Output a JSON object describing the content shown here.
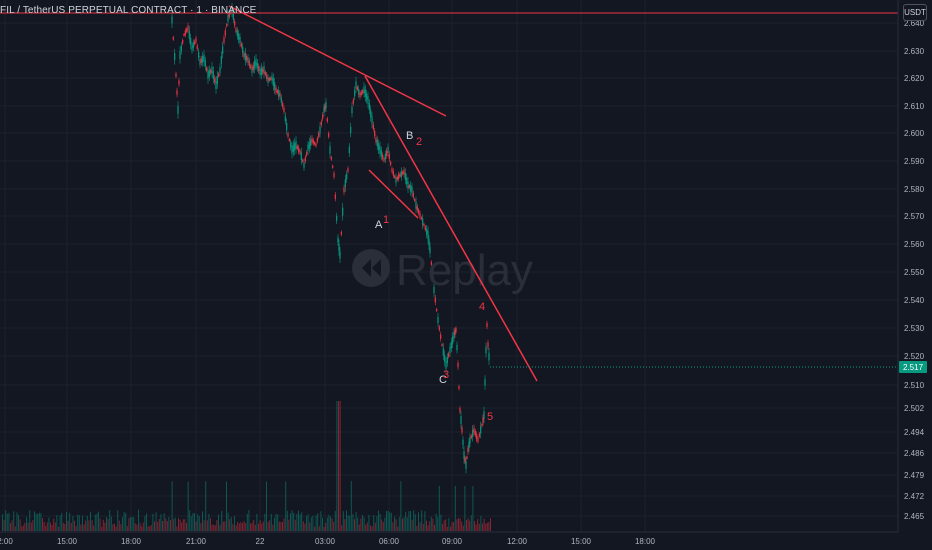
{
  "header": {
    "symbol_line": "FIL / TetherUS PERPETUAL CONTRACT · 1 · BINANCE",
    "currency_button": "USDT"
  },
  "watermark": {
    "text": "Replay"
  },
  "price_axis": {
    "ticks": [
      "2.640",
      "2.630",
      "2.620",
      "2.610",
      "2.600",
      "2.590",
      "2.580",
      "2.570",
      "2.560",
      "2.550",
      "2.540",
      "2.530",
      "2.520",
      "2.510",
      "2.502",
      "2.494",
      "2.486",
      "2.479",
      "2.472",
      "2.465"
    ],
    "current_price": "2.517",
    "current_price_color": "#089981"
  },
  "time_axis": {
    "ticks": [
      "2:00",
      "15:00",
      "18:00",
      "21:00",
      "22",
      "03:00",
      "06:00",
      "09:00",
      "12:00",
      "15:00",
      "18:00"
    ]
  },
  "wave_labels": [
    {
      "text": "1",
      "style": "red",
      "name": "wave-label-1"
    },
    {
      "text": "A",
      "style": "white",
      "name": "wave-label-a"
    },
    {
      "text": "B",
      "style": "white",
      "name": "wave-label-b"
    },
    {
      "text": "2",
      "style": "red",
      "name": "wave-label-2"
    },
    {
      "text": "C",
      "style": "white",
      "name": "wave-label-c"
    },
    {
      "text": "3",
      "style": "red",
      "name": "wave-label-3"
    },
    {
      "text": "4",
      "style": "red",
      "name": "wave-label-4"
    },
    {
      "text": "5",
      "style": "red",
      "name": "wave-label-5"
    }
  ],
  "colors": {
    "background": "#131722",
    "up": "#089981",
    "down": "#f23645",
    "trendline": "#f23645",
    "horizontal_line": "#f23645"
  }
}
